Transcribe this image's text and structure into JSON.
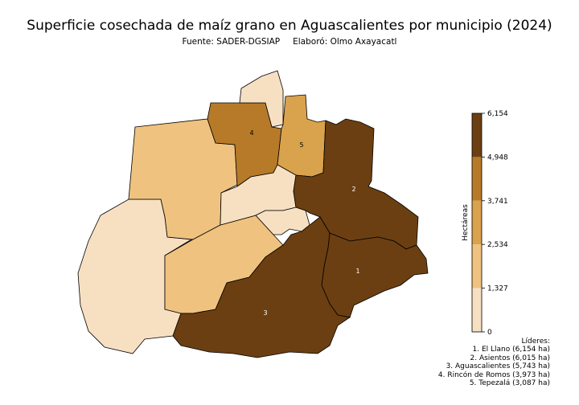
{
  "title": "Superficie cosechada de maíz grano en Aguascalientes por municipio (2024)",
  "subtitle": {
    "source": "Fuente: SADER-DGSIAP",
    "author": "Elaboró: Olmo Axayacatl"
  },
  "colorbar": {
    "label": "Hectáreas",
    "ticks": [
      "6,154",
      "4,948",
      "3,741",
      "2,534",
      "1,327",
      "0"
    ],
    "colors": [
      "#6b3f12",
      "#b77a28",
      "#d9a24c",
      "#efc27f",
      "#f7e0c2"
    ]
  },
  "region_labels": [
    "1",
    "2",
    "3",
    "4",
    "5"
  ],
  "leaders": {
    "title": "Líderes:",
    "items": [
      "1. El Llano (6,154 ha)",
      "2. Asientos (6,015 ha)",
      "3. Aguascalientes (5,743 ha)",
      "4. Rincón de Romos (3,973 ha)",
      "5. Tepezalá (3,087 ha)"
    ]
  },
  "colors": {
    "darkest": "#6b3f12",
    "dark": "#b77a28",
    "mid": "#d9a24c",
    "light": "#efc27f",
    "lightest": "#f7e0c2"
  }
}
